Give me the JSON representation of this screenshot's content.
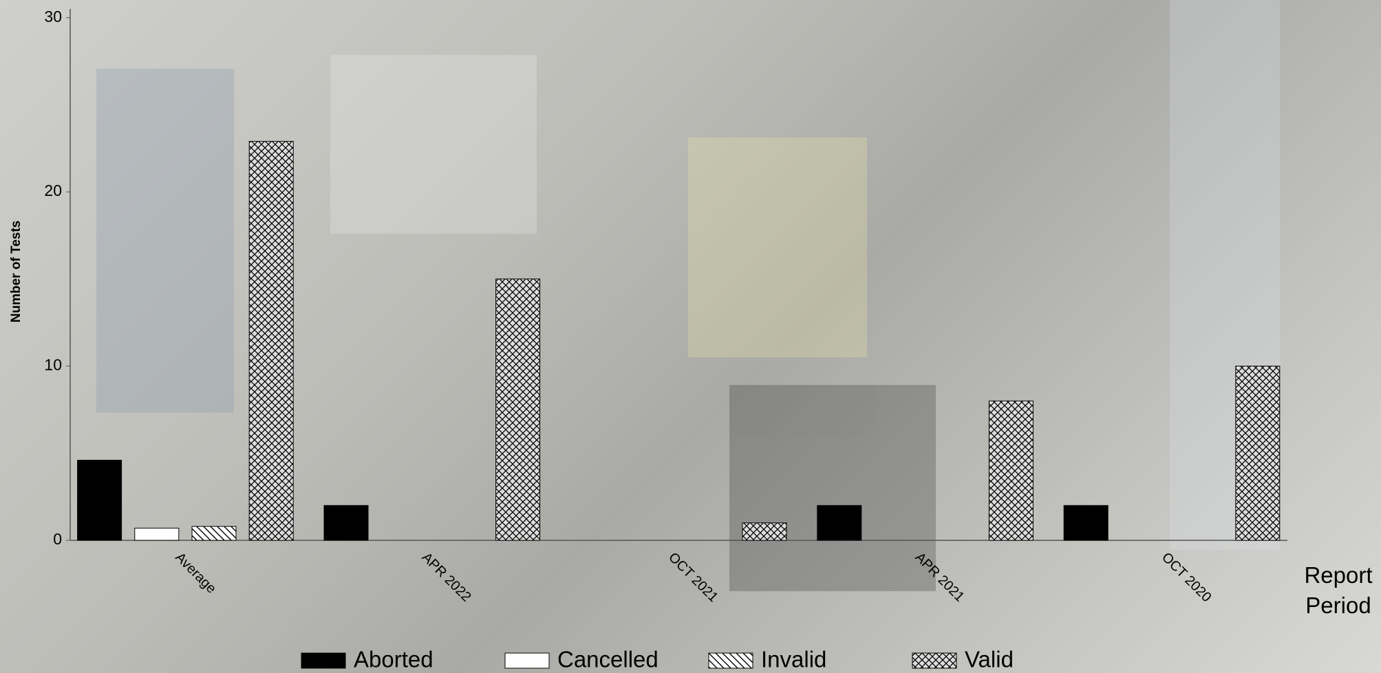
{
  "chart_data": {
    "type": "bar",
    "y_label": "Number of Tests",
    "x_label": "Report Period",
    "categories": [
      "Average",
      "APR 2022",
      "OCT 2021",
      "APR 2021",
      "OCT 2020"
    ],
    "series": [
      {
        "name": "Aborted",
        "color": "#000000",
        "pattern": "solid",
        "values": [
          4.6,
          2,
          0,
          2,
          2
        ]
      },
      {
        "name": "Cancelled",
        "color": "#ffffff",
        "pattern": "solid",
        "values": [
          0.7,
          0,
          0,
          0,
          0
        ]
      },
      {
        "name": "Invalid",
        "color": "#ffffff",
        "pattern": "diagonal",
        "values": [
          0.8,
          0,
          0,
          0,
          0
        ]
      },
      {
        "name": "Valid",
        "color": "#ffffff",
        "pattern": "crosshatch",
        "values": [
          22.9,
          15,
          1,
          8,
          10
        ]
      }
    ],
    "ylim": [
      0,
      30.5
    ],
    "yticks": [
      0,
      10,
      20,
      30
    ]
  }
}
